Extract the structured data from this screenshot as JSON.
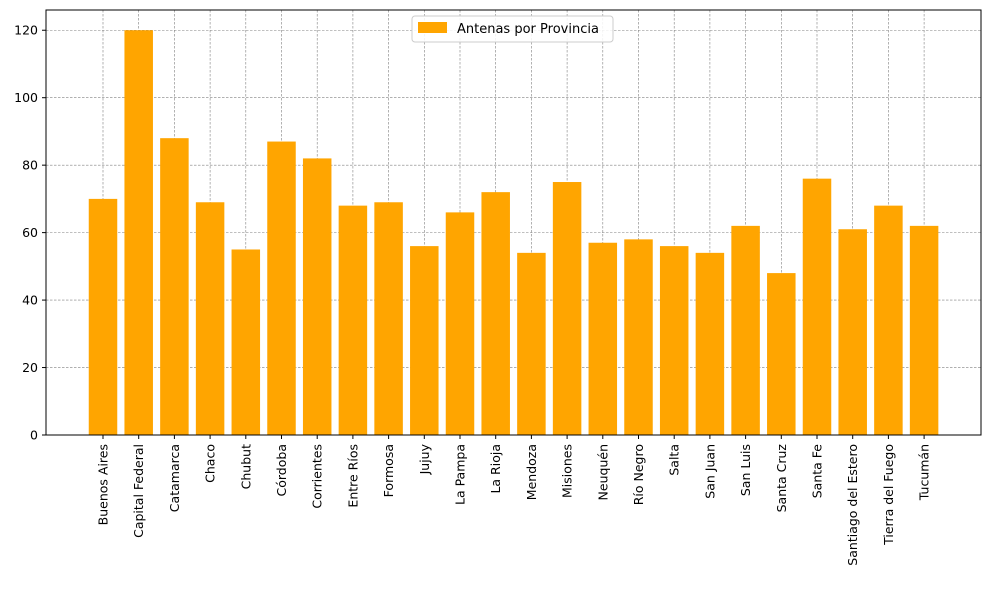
{
  "chart_data": {
    "type": "bar",
    "categories": [
      "Buenos Aires",
      "Capital Federal",
      "Catamarca",
      "Chaco",
      "Chubut",
      "Córdoba",
      "Corrientes",
      "Entre Ríos",
      "Formosa",
      "Jujuy",
      "La Pampa",
      "La Rioja",
      "Mendoza",
      "Misiones",
      "Neuquén",
      "Río Negro",
      "Salta",
      "San Juan",
      "San Luis",
      "Santa Cruz",
      "Santa Fe",
      "Santiago del Estero",
      "Tierra del Fuego",
      "Tucumán"
    ],
    "series": [
      {
        "name": "Antenas por Provincia",
        "values": [
          70,
          120,
          88,
          69,
          55,
          87,
          82,
          68,
          69,
          56,
          66,
          72,
          54,
          75,
          57,
          58,
          56,
          54,
          62,
          48,
          76,
          61,
          68,
          62
        ]
      }
    ],
    "title": "",
    "xlabel": "",
    "ylabel": "",
    "ylim": [
      0,
      126
    ],
    "yticks": [
      0,
      20,
      40,
      60,
      80,
      100,
      120
    ],
    "grid": true,
    "legend": "upper center",
    "colors": {
      "bar": "#ffa500",
      "grid": "#808080",
      "axis": "#000000"
    }
  }
}
